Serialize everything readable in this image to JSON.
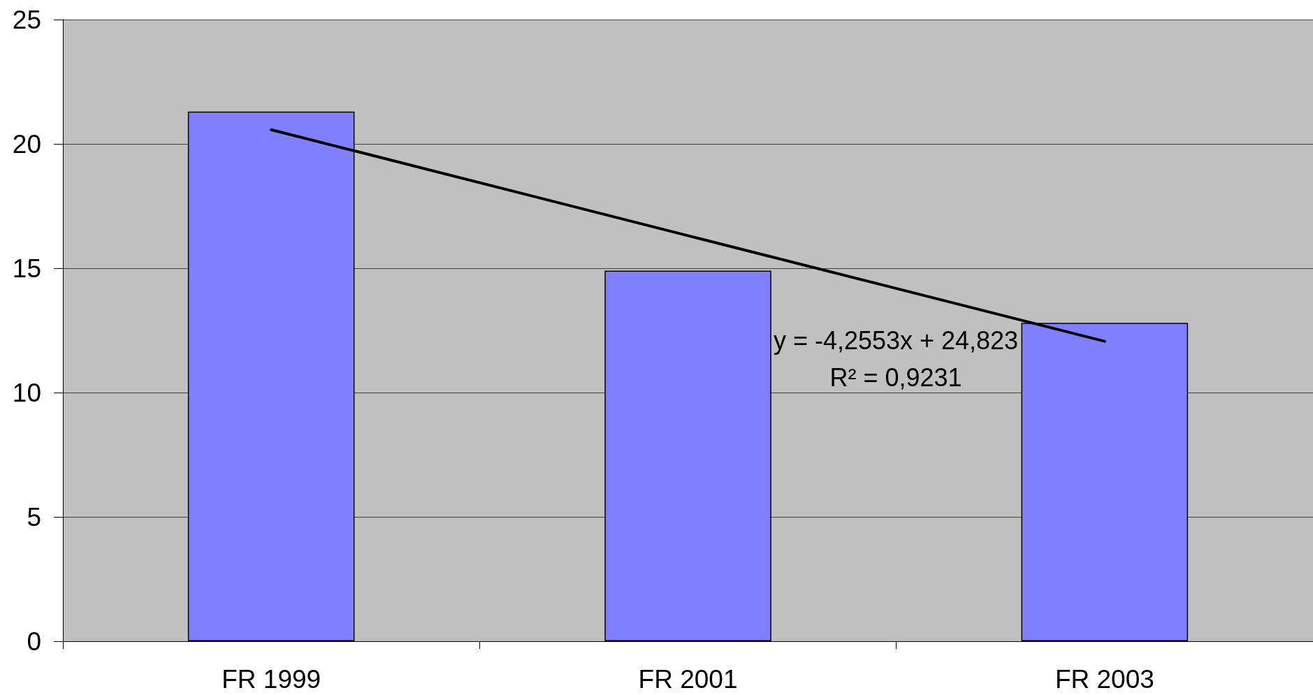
{
  "chart_data": {
    "type": "bar",
    "categories": [
      "FR 1999",
      "FR 2001",
      "FR 2003"
    ],
    "series": [
      {
        "color": "#8080ff",
        "values": [
          21.3,
          14.9,
          12.8
        ]
      },
      {
        "type": "line",
        "color": "#000000",
        "values": [
          20.57,
          16.31,
          12.06
        ],
        "marker": "none",
        "line_style": "solid"
      }
    ],
    "ylim": [
      0,
      25
    ],
    "yticks": [
      0,
      5,
      10,
      15,
      20,
      25
    ],
    "grid": "y",
    "annotations": [
      "y = -4,2553x + 24,823",
      "R² = 0,9231"
    ]
  }
}
